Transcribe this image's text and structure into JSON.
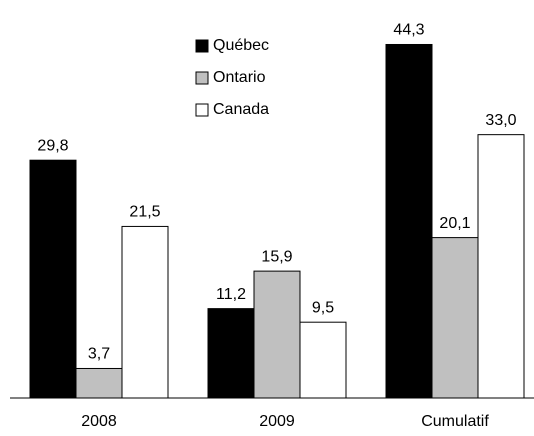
{
  "chart_data": {
    "type": "bar",
    "categories": [
      "2008",
      "2009",
      "Cumulatif"
    ],
    "series": [
      {
        "name": "Québec",
        "color": "#000000",
        "values": [
          29.8,
          11.2,
          44.3
        ],
        "value_labels": [
          "29,8",
          "11,2",
          "44,3"
        ]
      },
      {
        "name": "Ontario",
        "color": "#c0c0c0",
        "values": [
          3.7,
          15.9,
          20.1
        ],
        "value_labels": [
          "3,7",
          "15,9",
          "20,1"
        ]
      },
      {
        "name": "Canada",
        "color": "#ffffff",
        "values": [
          21.5,
          9.5,
          33.0
        ],
        "value_labels": [
          "21,5",
          "9,5",
          "33,0"
        ]
      }
    ],
    "legend": "top-center"
  }
}
